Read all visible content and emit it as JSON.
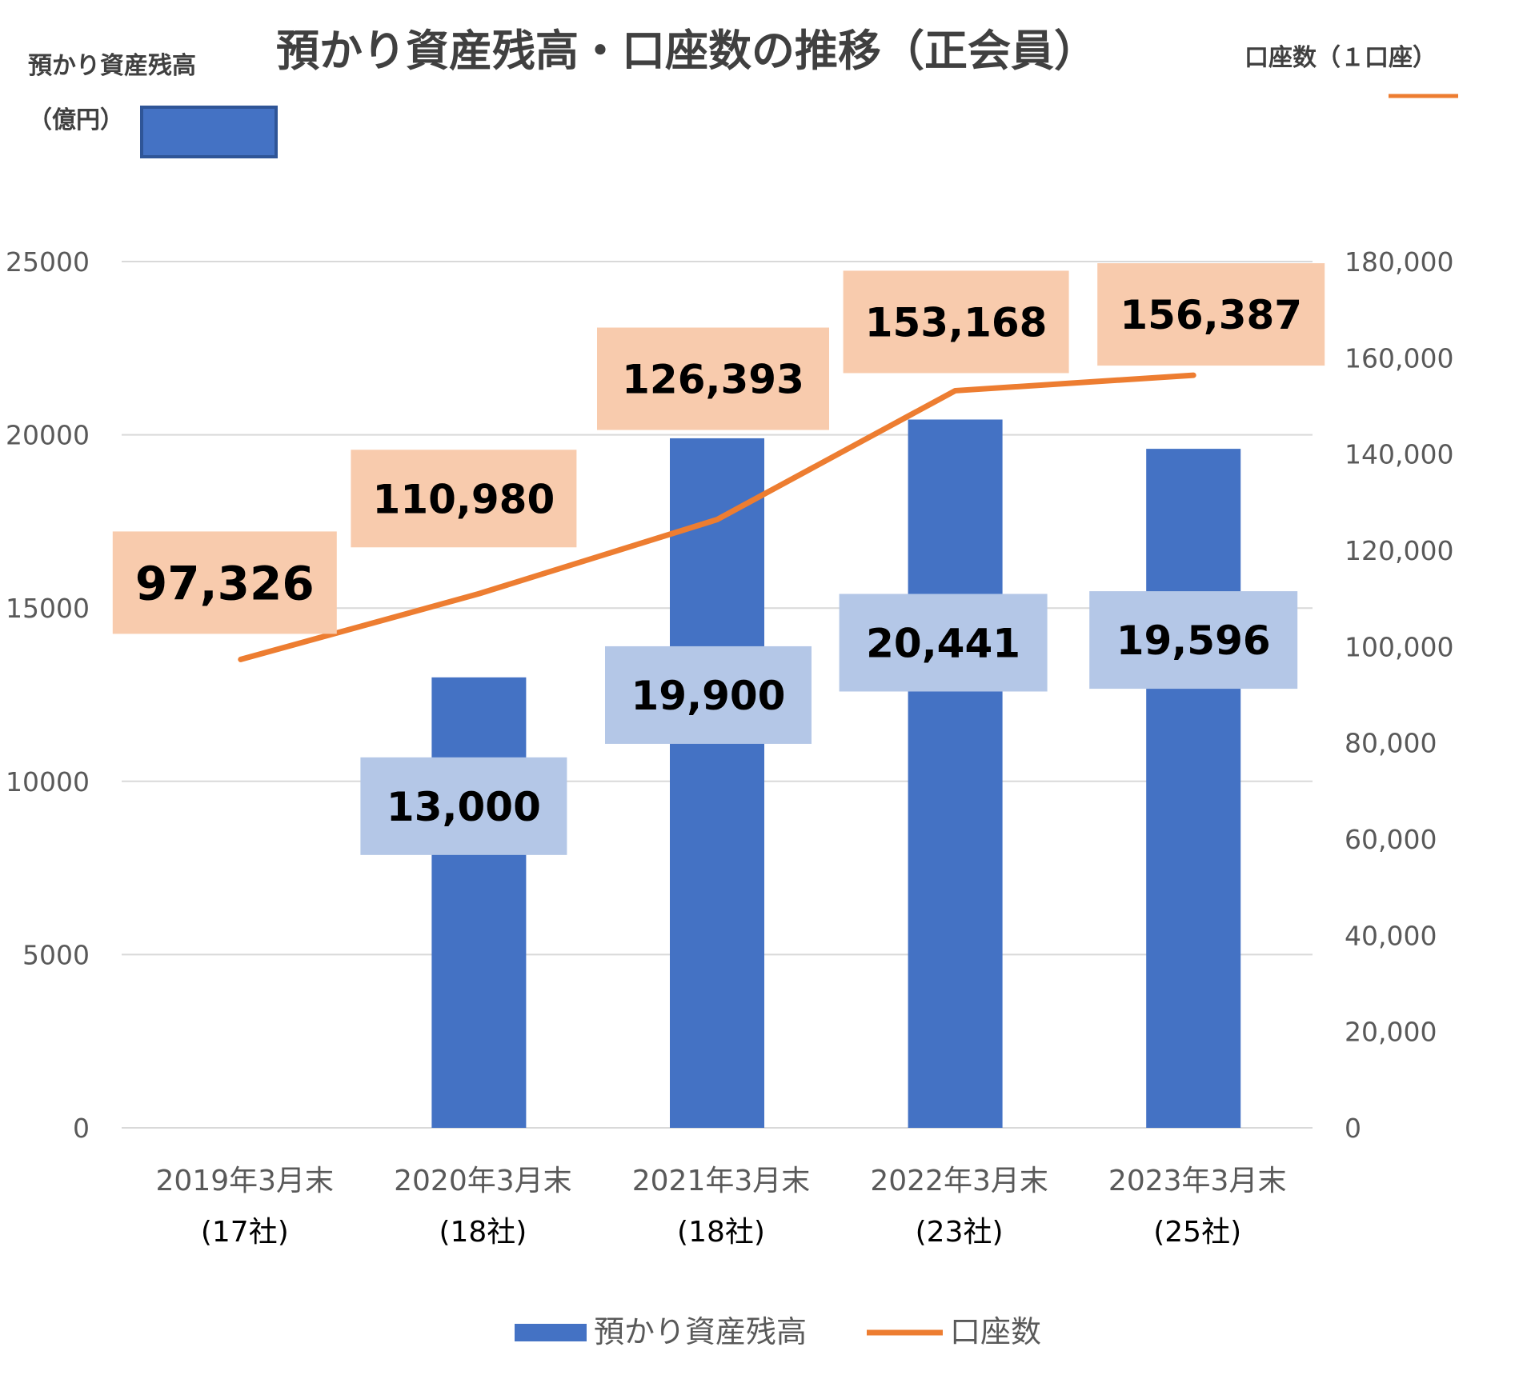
{
  "chart_data": {
    "type": "bar+line",
    "title": "預かり資産残高・口座数の推移（正会員）",
    "left_axis_label_line1": "預かり資産残高",
    "left_axis_label_line2": "（億円）",
    "right_axis_label": "口座数（１口座）",
    "categories": [
      "2019年3月末",
      "2020年3月末",
      "2021年3月末",
      "2022年3月末",
      "2023年3月末"
    ],
    "category_subtitles": [
      "(17社)",
      "(18社)",
      "(18社)",
      "(23社)",
      "(25社)"
    ],
    "left_ylim": [
      0,
      25000
    ],
    "left_ticks": [
      "0",
      "5000",
      "10000",
      "15000",
      "20000",
      "25000"
    ],
    "right_ylim": [
      0,
      180000
    ],
    "right_ticks": [
      "0",
      "20,000",
      "40,000",
      "60,000",
      "80,000",
      "100,000",
      "120,000",
      "140,000",
      "160,000",
      "180,000"
    ],
    "series": [
      {
        "name": "預かり資産残高",
        "type": "bar",
        "axis": "left",
        "color": "#4472c4",
        "values": [
          null,
          13000,
          19900,
          20441,
          19596
        ],
        "labels": [
          "",
          "13,000",
          "19,900",
          "20,441",
          "19,596"
        ],
        "label_bg": "#b4c7e7"
      },
      {
        "name": "口座数",
        "type": "line",
        "axis": "right",
        "color": "#ed7d31",
        "values": [
          97326,
          110980,
          126393,
          153168,
          156387
        ],
        "labels": [
          "97,326",
          "110,980",
          "126,393",
          "153,168",
          "156,387"
        ],
        "label_bg": "#f8cbad"
      }
    ],
    "gridline_color": "#d9d9d9",
    "legend": [
      "預かり資産残高",
      "口座数"
    ],
    "legend_position": "bottom"
  }
}
